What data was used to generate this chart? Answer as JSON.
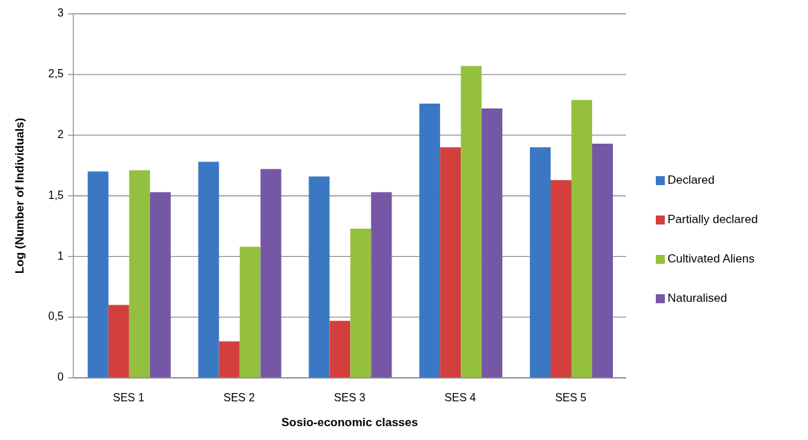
{
  "chart_data": {
    "type": "bar",
    "xlabel": "Sosio-economic classes",
    "ylabel": "Log (Number of Individuals)",
    "categories": [
      "SES 1",
      "SES 2",
      "SES 3",
      "SES 4",
      "SES 5"
    ],
    "series": [
      {
        "name": "Declared",
        "color": "#3a78c3",
        "values": [
          1.7,
          1.78,
          1.66,
          2.26,
          1.9
        ]
      },
      {
        "name": "Partially declared",
        "color": "#d23f3c",
        "values": [
          0.6,
          0.3,
          0.47,
          1.9,
          1.63
        ]
      },
      {
        "name": "Cultivated Aliens",
        "color": "#95c03f",
        "values": [
          1.71,
          1.08,
          1.23,
          2.57,
          2.29
        ]
      },
      {
        "name": "Naturalised",
        "color": "#7557a5",
        "values": [
          1.53,
          1.72,
          1.53,
          2.22,
          1.93
        ]
      }
    ],
    "ylim": [
      0,
      3
    ],
    "yticks": [
      0,
      {
        "value": 0.5,
        "label": "0,5"
      },
      1,
      {
        "value": 1.5,
        "label": "1,5"
      },
      2,
      {
        "value": 2.5,
        "label": "2,5"
      },
      3
    ],
    "grid": "y",
    "legend": "right"
  }
}
